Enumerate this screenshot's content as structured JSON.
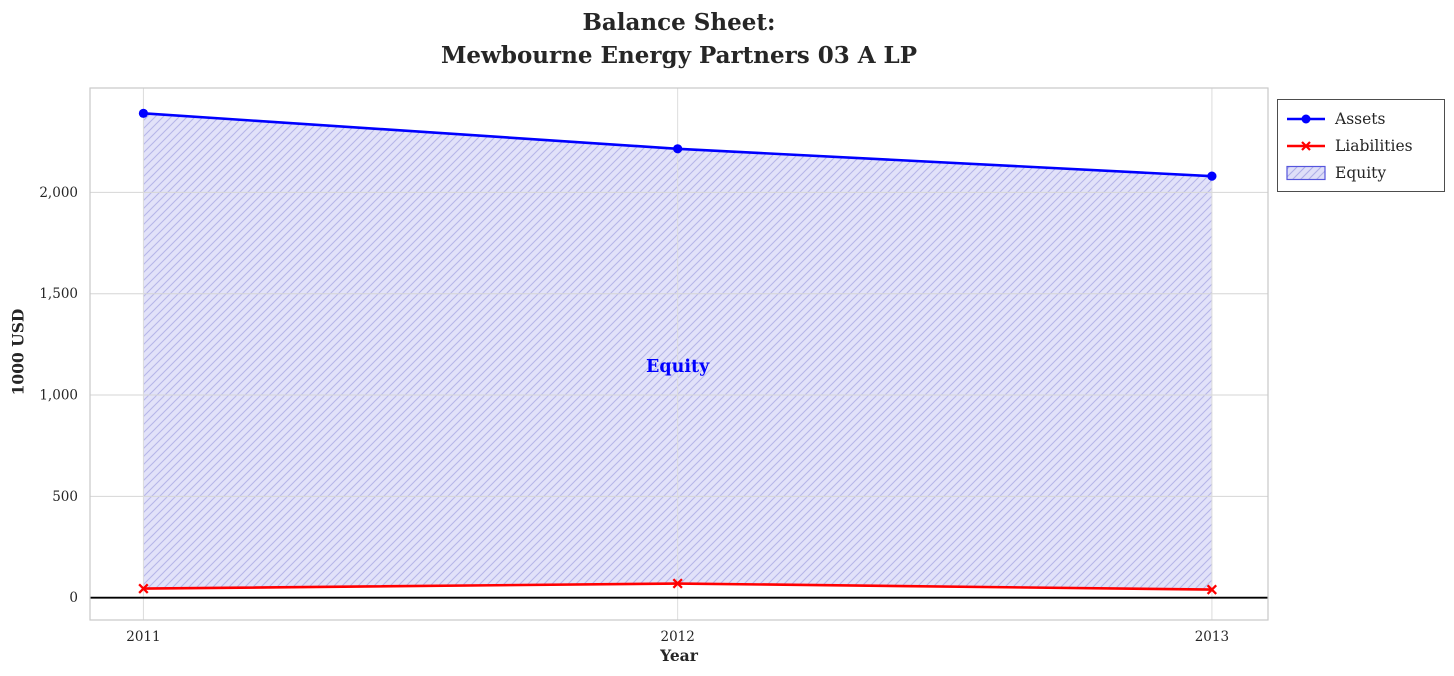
{
  "title": {
    "line1": "Balance Sheet:",
    "line2": "Mewbourne Energy Partners 03 A LP"
  },
  "chart_data": {
    "type": "line",
    "title": "Balance Sheet: Mewbourne Energy Partners 03 A LP",
    "xlabel": "Year",
    "ylabel": "1000 USD",
    "x": [
      2011,
      2012,
      2013
    ],
    "xtick_labels": [
      "2011",
      "2012",
      "2013"
    ],
    "yticks": [
      0,
      500,
      1000,
      1500,
      2000
    ],
    "ytick_labels": [
      "0",
      "500",
      "1,000",
      "1,500",
      "2,000"
    ],
    "xlim": [
      2010.9,
      2013.105
    ],
    "ylim": [
      -110,
      2515
    ],
    "grid": true,
    "series": [
      {
        "name": "Assets",
        "values": [
          2390,
          2215,
          2080
        ],
        "color": "#0000ff",
        "marker": "circle"
      },
      {
        "name": "Liabilities",
        "values": [
          45,
          70,
          40
        ],
        "color": "#ff0000",
        "marker": "x"
      }
    ],
    "area": {
      "name": "Equity",
      "between": [
        "Liabilities",
        "Assets"
      ],
      "fill_color": "#dfdff8",
      "hatch_color": "#aeaee6",
      "hatch": "///",
      "edge_color": "#5555dd",
      "label": "Equity",
      "label_color": "#0000ff",
      "label_x": 2012,
      "label_y": 1140
    },
    "axhline": {
      "y": 0,
      "color": "#000000"
    },
    "legend": {
      "position": "upper-right-outside",
      "entries": [
        "Assets",
        "Liabilities",
        "Equity"
      ]
    }
  }
}
